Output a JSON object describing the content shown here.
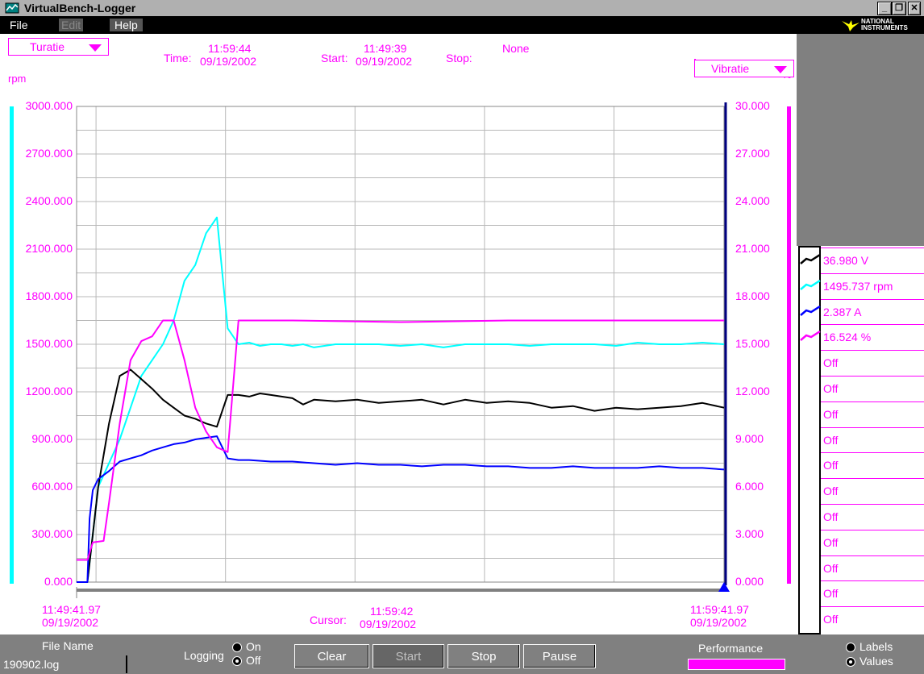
{
  "window": {
    "title": "VirtualBench-Logger",
    "minimize_glyph": "_",
    "restore_glyph": "❐",
    "close_glyph": "✕",
    "brand_line1": "NATIONAL",
    "brand_line2": "INSTRUMENTS"
  },
  "menu": {
    "file": "File",
    "edit": "Edit",
    "help": "Help"
  },
  "header": {
    "left_channel": "Turatie",
    "right_channel": "Vibratie",
    "time_label": "Time:",
    "time_value": "11:59:44",
    "time_date": "09/19/2002",
    "start_label": "Start:",
    "start_value": "11:49:39",
    "start_date": "09/19/2002",
    "stop_label": "Stop:",
    "stop_value": "None",
    "left_unit": "rpm",
    "right_unit": "%"
  },
  "xaxis": {
    "left_time": "11:49:41.97",
    "left_date": "09/19/2002",
    "cursor_label": "Cursor:",
    "cursor_time": "11:59:42",
    "cursor_date": "09/19/2002",
    "right_time": "11:59:41.97",
    "right_date": "09/19/2002"
  },
  "legend": {
    "items": [
      "36.980 V",
      "1495.737 rpm",
      "2.387 A",
      "16.524 %",
      "Off",
      "Off",
      "Off",
      "Off",
      "Off",
      "Off",
      "Off",
      "Off",
      "Off",
      "Off",
      "Off"
    ]
  },
  "controls": {
    "file_name_label": "File Name",
    "file_name_value": "190902.log",
    "logging_label": "Logging",
    "logging_on": "On",
    "logging_off": "Off",
    "clear": "Clear",
    "start": "Start",
    "stop": "Stop",
    "pause": "Pause",
    "performance": "Performance",
    "labels": "Labels",
    "values": "Values"
  },
  "colors": {
    "magenta": "#ff00ff",
    "cyan": "#00ffff",
    "black": "#000000",
    "blue": "#0000ff",
    "navy": "#000080"
  },
  "chart_data": {
    "type": "line",
    "left_axis": {
      "label": "rpm",
      "ylim": [
        0,
        3000
      ],
      "ticks": [
        "0.000",
        "300.000",
        "600.000",
        "900.000",
        "1200.000",
        "1500.000",
        "1800.000",
        "2100.000",
        "2400.000",
        "2700.000",
        "3000.000"
      ]
    },
    "right_axis": {
      "label": "%",
      "ylim": [
        0,
        30
      ],
      "ticks": [
        "0.000",
        "3.000",
        "6.000",
        "9.000",
        "12.000",
        "15.000",
        "18.000",
        "21.000",
        "24.000",
        "27.000",
        "30.000"
      ]
    },
    "xlim": [
      0,
      600
    ],
    "grid": true,
    "series": [
      {
        "color": "#00ffff",
        "axis": "left",
        "x": [
          0,
          10,
          15,
          20,
          30,
          40,
          50,
          60,
          70,
          80,
          90,
          100,
          110,
          120,
          130,
          140,
          150,
          160,
          170,
          180,
          190,
          200,
          210,
          220,
          240,
          260,
          280,
          300,
          320,
          340,
          360,
          380,
          400,
          420,
          440,
          460,
          480,
          500,
          520,
          540,
          560,
          580,
          600
        ],
        "y": [
          0,
          0,
          300,
          600,
          750,
          900,
          1100,
          1300,
          1400,
          1500,
          1650,
          1900,
          2000,
          2200,
          2300,
          1600,
          1500,
          1510,
          1490,
          1500,
          1500,
          1490,
          1500,
          1480,
          1500,
          1500,
          1500,
          1490,
          1500,
          1480,
          1500,
          1500,
          1500,
          1490,
          1500,
          1500,
          1500,
          1490,
          1510,
          1500,
          1500,
          1510,
          1500
        ]
      },
      {
        "color": "#000000",
        "axis": "left",
        "x": [
          0,
          10,
          15,
          20,
          30,
          40,
          50,
          60,
          70,
          80,
          90,
          100,
          110,
          120,
          130,
          140,
          150,
          160,
          170,
          180,
          190,
          200,
          210,
          220,
          240,
          260,
          280,
          300,
          320,
          340,
          360,
          380,
          400,
          420,
          440,
          460,
          480,
          500,
          520,
          540,
          560,
          580,
          600
        ],
        "y": [
          0,
          0,
          300,
          600,
          1000,
          1300,
          1340,
          1280,
          1220,
          1150,
          1100,
          1050,
          1030,
          1000,
          980,
          1180,
          1180,
          1170,
          1190,
          1180,
          1170,
          1160,
          1120,
          1150,
          1140,
          1150,
          1130,
          1140,
          1150,
          1120,
          1150,
          1130,
          1140,
          1130,
          1100,
          1110,
          1080,
          1100,
          1090,
          1100,
          1110,
          1130,
          1100
        ]
      },
      {
        "color": "#0000ff",
        "axis": "left",
        "x": [
          0,
          10,
          12,
          15,
          20,
          30,
          40,
          50,
          60,
          70,
          80,
          90,
          100,
          110,
          120,
          130,
          140,
          150,
          160,
          180,
          200,
          220,
          240,
          260,
          280,
          300,
          320,
          340,
          360,
          380,
          400,
          420,
          440,
          460,
          480,
          500,
          520,
          540,
          560,
          580,
          600
        ],
        "y": [
          0,
          0,
          400,
          580,
          650,
          700,
          760,
          780,
          800,
          830,
          850,
          870,
          880,
          900,
          910,
          920,
          780,
          770,
          770,
          760,
          760,
          750,
          740,
          750,
          740,
          740,
          730,
          740,
          740,
          730,
          730,
          720,
          720,
          730,
          720,
          720,
          720,
          730,
          720,
          720,
          710
        ]
      },
      {
        "color": "#ff00ff",
        "axis": "right",
        "x": [
          0,
          10,
          15,
          25,
          30,
          40,
          50,
          60,
          70,
          80,
          90,
          100,
          110,
          120,
          130,
          140,
          150,
          160,
          200,
          300,
          400,
          500,
          600
        ],
        "y": [
          1.4,
          1.4,
          2.5,
          2.6,
          5,
          10,
          14,
          15.2,
          15.5,
          16.5,
          16.5,
          14,
          11,
          9.5,
          8.5,
          8.2,
          16.5,
          16.5,
          16.5,
          16.4,
          16.5,
          16.5,
          16.5
        ]
      }
    ]
  }
}
